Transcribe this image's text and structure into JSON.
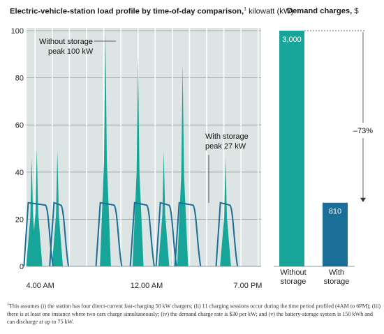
{
  "chart_data": [
    {
      "type": "area",
      "title": "Electric-vehicle-station load profile by time-of-day comparison,",
      "title_footnote_marker": "1",
      "unit": "kilowatt (kW)",
      "x_tick_labels": [
        "4.00 AM",
        "12.00 AM",
        "7.00 PM"
      ],
      "y_ticks": [
        0,
        20,
        40,
        60,
        80,
        100
      ],
      "ylim": [
        0,
        100
      ],
      "grid": true,
      "series": [
        {
          "name": "Without storage",
          "color": "#17a599",
          "peaks": [
            {
              "x": 0.3,
              "y": 46
            },
            {
              "x": 0.6,
              "y": 50
            },
            {
              "x": 1.8,
              "y": 49
            },
            {
              "x": 4.6,
              "y": 100
            },
            {
              "x": 6.5,
              "y": 89
            },
            {
              "x": 8.0,
              "y": 49
            },
            {
              "x": 9.1,
              "y": 86
            },
            {
              "x": 11.6,
              "y": 46
            }
          ]
        },
        {
          "name": "With storage",
          "color": "#1a6f98",
          "level_kW": 27
        }
      ],
      "annotations": [
        {
          "label": "Without storage",
          "label2": "peak 100 kW"
        },
        {
          "label": "With storage",
          "label2": "peak 27 kW"
        }
      ]
    },
    {
      "type": "bar",
      "title": "Demand charges,",
      "unit": "$",
      "categories": [
        "Without\nstorage",
        "With\nstorage"
      ],
      "category_lines": [
        [
          "Without",
          "storage"
        ],
        [
          "With",
          "storage"
        ]
      ],
      "values": [
        3000,
        810
      ],
      "value_labels": [
        "3,000",
        "810"
      ],
      "colors": [
        "#17a599",
        "#1a6f98"
      ],
      "change_label": "–73%",
      "ylim": [
        0,
        3000
      ]
    }
  ],
  "footnote": {
    "marker": "1",
    "text": "This assumes (i) the station has four direct-current fast-charging 50 kW chargers; (ii) 11 charging sessions occur during the time period profiled (4AM to 6PM); (iii) there is at least one instance where two cars charge simultaneously; (iv) the demand charge rate is $30 per kW; and (v) the battery-storage system is 150 kWh and can discharge at up to 75 kW."
  }
}
